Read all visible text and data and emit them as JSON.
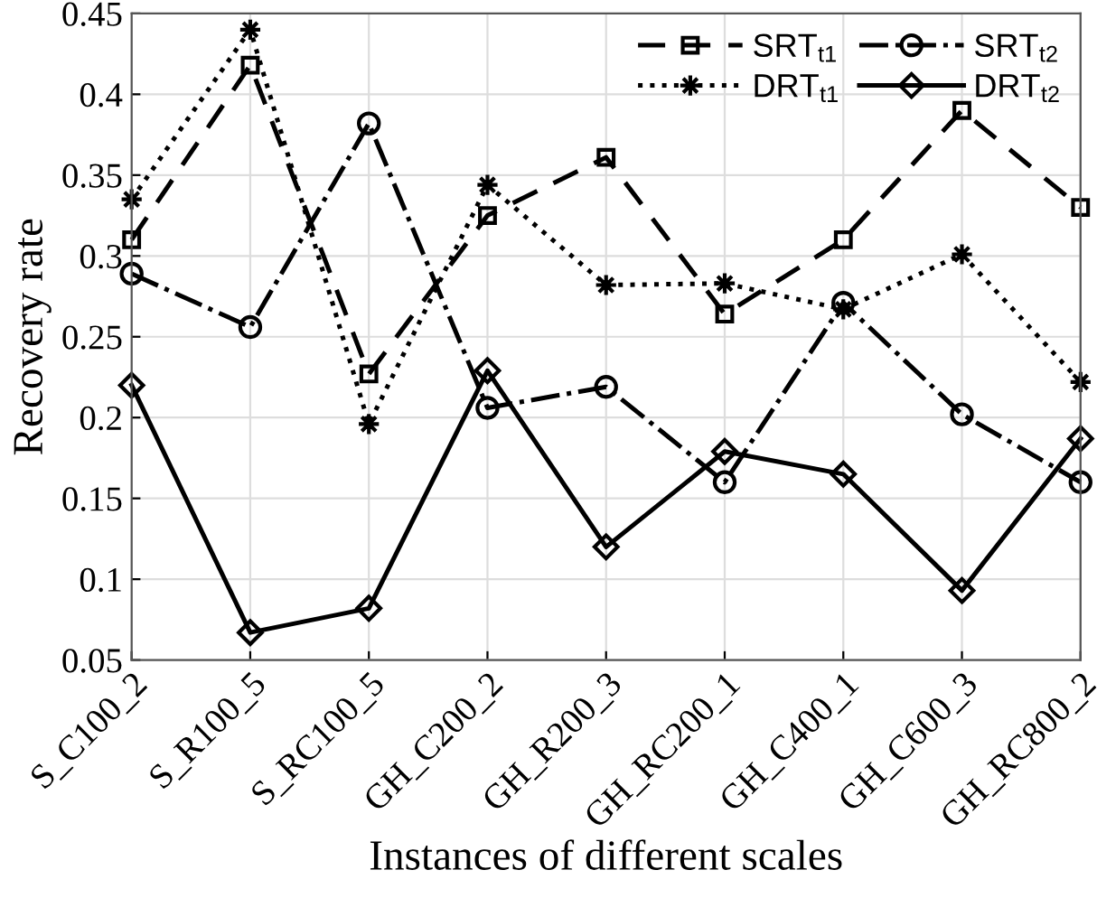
{
  "chart_data": {
    "type": "line",
    "xlabel": "Instances of different scales",
    "ylabel": "Recovery rate",
    "categories": [
      "S_C100_2",
      "S_R100_5",
      "S_RC100_5",
      "GH_C200_2",
      "GH_R200_3",
      "GH_RC200_1",
      "GH_C400_1",
      "GH_C600_3",
      "GH_RC800_2"
    ],
    "ylim": [
      0.05,
      0.45
    ],
    "yticks": [
      0.05,
      0.1,
      0.15,
      0.2,
      0.25,
      0.3,
      0.35,
      0.4,
      0.45
    ],
    "grid": true,
    "legend": "top right",
    "series": [
      {
        "name": "SRT$_{t1}$",
        "color": "#000000",
        "marker": "square",
        "line_style": "dashed",
        "values": [
          0.31,
          0.418,
          0.227,
          0.325,
          0.361,
          0.264,
          0.31,
          0.39,
          0.33
        ]
      },
      {
        "name": "SRT$_{t2}$",
        "color": "#000000",
        "marker": "circle",
        "line_style": "dashdot",
        "values": [
          0.289,
          0.256,
          0.382,
          0.206,
          0.219,
          0.16,
          0.271,
          0.202,
          0.16
        ]
      },
      {
        "name": "DRT$_{t1}$",
        "color": "#000000",
        "marker": "star",
        "line_style": "dotted",
        "values": [
          0.335,
          0.44,
          0.196,
          0.344,
          0.282,
          0.283,
          0.267,
          0.301,
          0.222
        ]
      },
      {
        "name": "DRT$_{t2}$",
        "color": "#000000",
        "marker": "diamond",
        "line_style": "solid",
        "values": [
          0.22,
          0.067,
          0.082,
          0.229,
          0.12,
          0.179,
          0.165,
          0.093,
          0.187
        ]
      }
    ]
  }
}
